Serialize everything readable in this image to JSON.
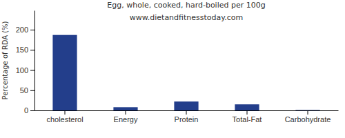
{
  "chart_data": {
    "type": "bar",
    "title": "Egg, whole, cooked, hard-boiled per 100g",
    "subtitle": "www.dietandfitnesstoday.com",
    "y_label": "Percentage of RDA (%)",
    "categories": [
      "cholesterol",
      "Energy",
      "Protein",
      "Total-Fat",
      "Carbohydrate"
    ],
    "values": [
      187,
      8,
      22,
      15,
      1
    ],
    "color": "#233e8b",
    "ylim": [
      0,
      248
    ],
    "yticks": [
      0,
      50,
      100,
      150,
      200
    ],
    "grid": false
  }
}
